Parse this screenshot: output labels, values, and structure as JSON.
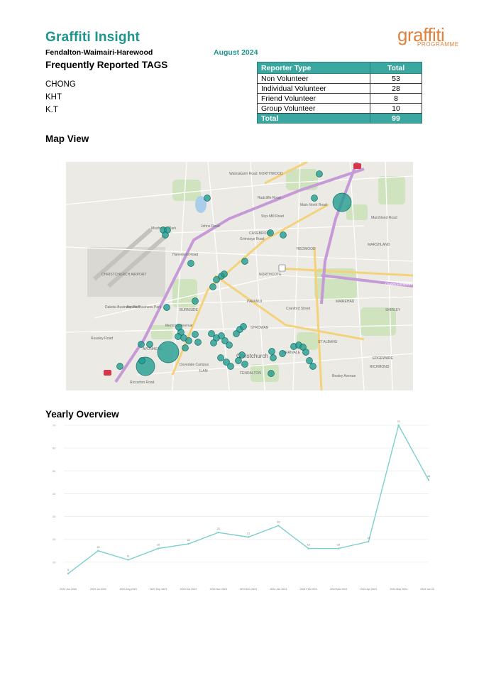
{
  "report": {
    "title": "Graffiti Insight",
    "subtitle": "Fendalton-Waimairi-Harewood",
    "date": "August 2024"
  },
  "logo": {
    "word": "graffiti",
    "sub": "PROGRAMME",
    "color": "#e0823c"
  },
  "tags": {
    "heading": "Frequently Reported TAGS",
    "items": [
      "CHONG",
      "KHT",
      "K.T"
    ]
  },
  "reporter_table": {
    "headers": [
      "Reporter Type",
      "Total"
    ],
    "rows": [
      {
        "type": "Non Volunteer",
        "total": "53"
      },
      {
        "type": "Individual Volunteer",
        "total": "28"
      },
      {
        "type": "Friend Volunteer",
        "total": "8"
      },
      {
        "type": "Group Volunteer",
        "total": "10"
      }
    ],
    "total_label": "Total",
    "total_value": "99",
    "header_color": "#3aa8a0"
  },
  "map": {
    "heading": "Map View",
    "labels": [
      "NORTHWOOD",
      "CASEBROOK",
      "REDWOOD",
      "MARSHLAND",
      "NORTHCOTE",
      "CHRISTCHURCH AIRPORT",
      "Dakota Business Park",
      "Airpark Business Park",
      "BURNSIDE",
      "PAPANUI",
      "MAIREHAU",
      "SHIRLEY",
      "ST ALBANS",
      "STROWAN",
      "MERIVALE",
      "EDGEWARE",
      "RICHMOND",
      "AVONHEAD",
      "ILAM",
      "FENDALTON",
      "Christchurch",
      "Styx Mill Road",
      "Queen Elizabeth",
      "Waimakariri Road",
      "Harewood Road",
      "Johns Road",
      "Memorial Avenue",
      "Riccarton Road",
      "Bealey Avenue",
      "Cranford Street",
      "Main North Road",
      "Marshland Road",
      "Russley Road",
      "Dovedale Campus",
      "Grimseys Road",
      "Radcliffe Road",
      "Mushroom Park"
    ],
    "marker_color": "#1d9a90"
  },
  "chart_data": {
    "type": "line",
    "heading": "Yearly Overview",
    "categories": [
      "2023 Jun 2023",
      "2023 Jul 2023",
      "2023 Aug 2023",
      "2023 Sep 2023",
      "2023 Oct 2023",
      "2023 Nov 2023",
      "2023 Dec 2023",
      "2024 Jan 2024",
      "2024 Feb 2024",
      "2024 Mar 2024",
      "2024 Apr 2024",
      "2024 May 2024",
      "2024 Jun 2024"
    ],
    "values": [
      5,
      15,
      11,
      16,
      18,
      23,
      21,
      26,
      16,
      16,
      19,
      70,
      46
    ],
    "ylim": [
      0,
      70
    ],
    "yticks": [
      10,
      20,
      30,
      40,
      50,
      60,
      70
    ],
    "grid": true,
    "line_color": "#7bcfcc"
  }
}
